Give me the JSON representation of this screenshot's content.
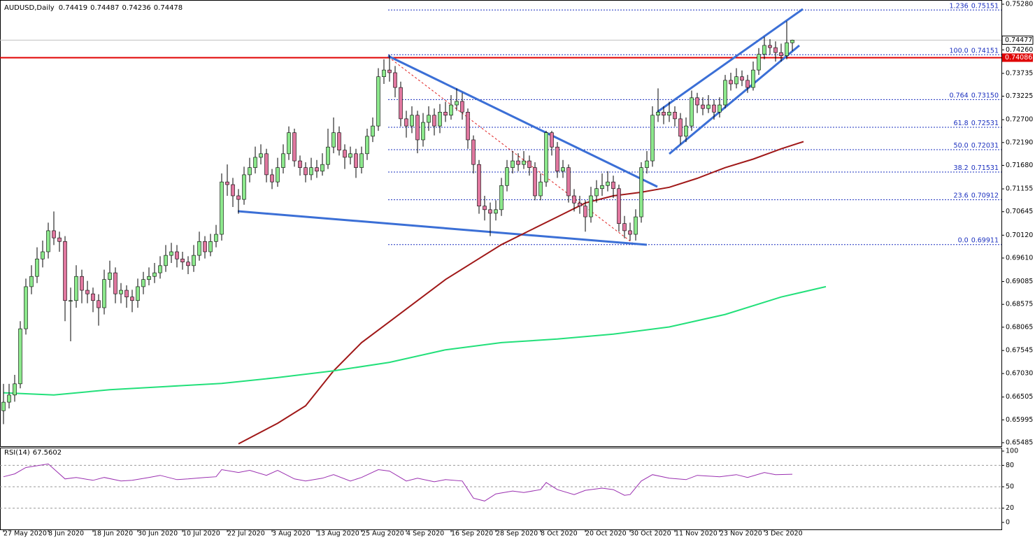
{
  "chart_data": [
    {
      "type": "candlestick",
      "symbol": "AUDUSD,Daily",
      "up_color": "#8ce88c",
      "down_color": "#e0779f",
      "xlim": [
        -0.625,
        178.375
      ],
      "ylim": [
        0.65407,
        0.75374
      ],
      "xticks": [
        {
          "value": 0,
          "label": "27 May 2020"
        },
        {
          "value": 8,
          "label": "8 Jun 2020"
        },
        {
          "value": 16,
          "label": "18 Jun 2020"
        },
        {
          "value": 24,
          "label": "30 Jun 2020"
        },
        {
          "value": 32,
          "label": "10 Jul 2020"
        },
        {
          "value": 40,
          "label": "22 Jul 2020"
        },
        {
          "value": 48,
          "label": "3 Aug 2020"
        },
        {
          "value": 56,
          "label": "13 Aug 2020"
        },
        {
          "value": 64,
          "label": "25 Aug 2020"
        },
        {
          "value": 72,
          "label": "4 Sep 2020"
        },
        {
          "value": 80,
          "label": "16 Sep 2020"
        },
        {
          "value": 88,
          "label": "28 Sep 2020"
        },
        {
          "value": 96,
          "label": "8 Oct 2020"
        },
        {
          "value": 104,
          "label": "20 Oct 2020"
        },
        {
          "value": 112,
          "label": "30 Oct 2020"
        },
        {
          "value": 120,
          "label": "11 Nov 2020"
        },
        {
          "value": 128,
          "label": "23 Nov 2020"
        },
        {
          "value": 136,
          "label": "3 Dec 2020"
        }
      ],
      "yticks": [
        {
          "value": 0.7528,
          "label": "0.75280"
        },
        {
          "value": 0.7426,
          "label": "0.74260"
        },
        0.73735,
        0.73225,
        {
          "value": 0.727,
          "label": "0.72700"
        },
        {
          "value": 0.7219,
          "label": "0.72190"
        },
        {
          "value": 0.7168,
          "label": "0.71680"
        },
        0.71155,
        0.70645,
        {
          "value": 0.7012,
          "label": "0.70120"
        },
        {
          "value": 0.6961,
          "label": "0.69610"
        },
        0.69085,
        0.68575,
        0.68065,
        0.67545,
        {
          "value": 0.6703,
          "label": "0.67030"
        },
        0.66505,
        0.65995,
        0.65485
      ],
      "candles": [
        [
          0.662,
          0.668,
          0.659,
          0.6639
        ],
        [
          0.6639,
          0.668,
          0.6625,
          0.6655
        ],
        [
          0.6655,
          0.67,
          0.664,
          0.668
        ],
        [
          0.668,
          0.682,
          0.667,
          0.6803
        ],
        [
          0.6803,
          0.6915,
          0.679,
          0.6897
        ],
        [
          0.6897,
          0.6945,
          0.688,
          0.692
        ],
        [
          0.692,
          0.6985,
          0.6905,
          0.6959
        ],
        [
          0.6959,
          0.7,
          0.694,
          0.6975
        ],
        [
          0.6975,
          0.704,
          0.696,
          0.7022
        ],
        [
          0.7022,
          0.7065,
          0.699,
          0.7006
        ],
        [
          0.7006,
          0.702,
          0.6975,
          0.6998
        ],
        [
          0.6998,
          0.701,
          0.682,
          0.6866
        ],
        [
          0.6866,
          0.6895,
          0.6775,
          0.6866
        ],
        [
          0.6866,
          0.6945,
          0.685,
          0.692
        ],
        [
          0.692,
          0.6935,
          0.686,
          0.6889
        ],
        [
          0.6889,
          0.691,
          0.686,
          0.6881
        ],
        [
          0.6881,
          0.6895,
          0.684,
          0.6866
        ],
        [
          0.6866,
          0.688,
          0.681,
          0.685
        ],
        [
          0.685,
          0.6935,
          0.6835,
          0.6913
        ],
        [
          0.6913,
          0.6955,
          0.6895,
          0.6928
        ],
        [
          0.6928,
          0.694,
          0.686,
          0.6881
        ],
        [
          0.6881,
          0.6905,
          0.686,
          0.6889
        ],
        [
          0.6889,
          0.69,
          0.685,
          0.6874
        ],
        [
          0.6874,
          0.689,
          0.684,
          0.6866
        ],
        [
          0.6866,
          0.6915,
          0.685,
          0.6897
        ],
        [
          0.6897,
          0.693,
          0.688,
          0.6913
        ],
        [
          0.6913,
          0.694,
          0.69,
          0.692
        ],
        [
          0.692,
          0.695,
          0.6905,
          0.6928
        ],
        [
          0.6928,
          0.6965,
          0.6915,
          0.6944
        ],
        [
          0.6944,
          0.699,
          0.693,
          0.6967
        ],
        [
          0.6967,
          0.6995,
          0.695,
          0.6975
        ],
        [
          0.6975,
          0.699,
          0.694,
          0.6959
        ],
        [
          0.6959,
          0.6975,
          0.6935,
          0.6952
        ],
        [
          0.6952,
          0.6965,
          0.6925,
          0.6944
        ],
        [
          0.6944,
          0.699,
          0.693,
          0.6967
        ],
        [
          0.6967,
          0.702,
          0.6955,
          0.6998
        ],
        [
          0.6998,
          0.701,
          0.696,
          0.6975
        ],
        [
          0.6975,
          0.7015,
          0.6965,
          0.6998
        ],
        [
          0.6998,
          0.7035,
          0.6985,
          0.7014
        ],
        [
          0.7014,
          0.715,
          0.7,
          0.7131
        ],
        [
          0.7131,
          0.717,
          0.71,
          0.7125
        ],
        [
          0.7125,
          0.714,
          0.7075,
          0.71
        ],
        [
          0.71,
          0.7115,
          0.706,
          0.7092
        ],
        [
          0.7092,
          0.7165,
          0.708,
          0.7147
        ],
        [
          0.7147,
          0.7185,
          0.713,
          0.7163
        ],
        [
          0.7163,
          0.721,
          0.715,
          0.7186
        ],
        [
          0.7186,
          0.7215,
          0.717,
          0.7194
        ],
        [
          0.7194,
          0.7205,
          0.713,
          0.7147
        ],
        [
          0.7147,
          0.716,
          0.7115,
          0.7131
        ],
        [
          0.7131,
          0.7185,
          0.712,
          0.7163
        ],
        [
          0.7163,
          0.7215,
          0.715,
          0.7194
        ],
        [
          0.7194,
          0.7255,
          0.718,
          0.7241
        ],
        [
          0.7241,
          0.725,
          0.7165,
          0.7178
        ],
        [
          0.7178,
          0.719,
          0.7145,
          0.7163
        ],
        [
          0.7163,
          0.7175,
          0.713,
          0.7147
        ],
        [
          0.7147,
          0.7185,
          0.7135,
          0.7163
        ],
        [
          0.7163,
          0.718,
          0.714,
          0.7155
        ],
        [
          0.7155,
          0.7195,
          0.7145,
          0.717
        ],
        [
          0.717,
          0.725,
          0.716,
          0.7209
        ],
        [
          0.7209,
          0.7275,
          0.7195,
          0.7241
        ],
        [
          0.7241,
          0.7255,
          0.719,
          0.7202
        ],
        [
          0.7202,
          0.7215,
          0.716,
          0.7186
        ],
        [
          0.7186,
          0.721,
          0.717,
          0.7194
        ],
        [
          0.7194,
          0.7205,
          0.714,
          0.7163
        ],
        [
          0.7163,
          0.721,
          0.715,
          0.7194
        ],
        [
          0.7194,
          0.725,
          0.718,
          0.7233
        ],
        [
          0.7233,
          0.7275,
          0.722,
          0.7256
        ],
        [
          0.7256,
          0.7385,
          0.7245,
          0.7366
        ],
        [
          0.7366,
          0.7405,
          0.735,
          0.7381
        ],
        [
          0.7381,
          0.7415,
          0.7355,
          0.7375
        ],
        [
          0.7375,
          0.739,
          0.732,
          0.7342
        ],
        [
          0.7342,
          0.7355,
          0.7255,
          0.7272
        ],
        [
          0.7272,
          0.729,
          0.723,
          0.7256
        ],
        [
          0.7256,
          0.73,
          0.724,
          0.728
        ],
        [
          0.728,
          0.729,
          0.7195,
          0.7225
        ],
        [
          0.7225,
          0.7285,
          0.721,
          0.7264
        ],
        [
          0.7264,
          0.73,
          0.7245,
          0.728
        ],
        [
          0.728,
          0.7295,
          0.7235,
          0.7256
        ],
        [
          0.7256,
          0.7305,
          0.724,
          0.7287
        ],
        [
          0.7287,
          0.731,
          0.7265,
          0.728
        ],
        [
          0.728,
          0.7325,
          0.727,
          0.7303
        ],
        [
          0.7303,
          0.734,
          0.729,
          0.7311
        ],
        [
          0.7311,
          0.733,
          0.727,
          0.7287
        ],
        [
          0.7287,
          0.7295,
          0.7205,
          0.7225
        ],
        [
          0.7225,
          0.7235,
          0.715,
          0.717
        ],
        [
          0.717,
          0.718,
          0.706,
          0.7077
        ],
        [
          0.7077,
          0.71,
          0.7045,
          0.7069
        ],
        [
          0.7069,
          0.7085,
          0.701,
          0.7061
        ],
        [
          0.7061,
          0.709,
          0.7045,
          0.7069
        ],
        [
          0.7069,
          0.714,
          0.7055,
          0.7123
        ],
        [
          0.7123,
          0.718,
          0.711,
          0.7163
        ],
        [
          0.7163,
          0.72,
          0.715,
          0.7178
        ],
        [
          0.7178,
          0.7195,
          0.7155,
          0.717
        ],
        [
          0.717,
          0.72,
          0.716,
          0.7178
        ],
        [
          0.7178,
          0.719,
          0.7145,
          0.7163
        ],
        [
          0.7163,
          0.7175,
          0.709,
          0.71
        ],
        [
          0.71,
          0.715,
          0.709,
          0.7131
        ],
        [
          0.7131,
          0.7245,
          0.712,
          0.7241
        ],
        [
          0.7241,
          0.7245,
          0.719,
          0.7209
        ],
        [
          0.7209,
          0.722,
          0.714,
          0.7155
        ],
        [
          0.7155,
          0.718,
          0.714,
          0.7163
        ],
        [
          0.7163,
          0.717,
          0.7085,
          0.71
        ],
        [
          0.71,
          0.7115,
          0.7065,
          0.7084
        ],
        [
          0.7084,
          0.71,
          0.706,
          0.7077
        ],
        [
          0.7077,
          0.709,
          0.702,
          0.7053
        ],
        [
          0.7053,
          0.712,
          0.704,
          0.71
        ],
        [
          0.71,
          0.7135,
          0.7085,
          0.7116
        ],
        [
          0.7116,
          0.715,
          0.71,
          0.7123
        ],
        [
          0.7123,
          0.7155,
          0.711,
          0.7131
        ],
        [
          0.7131,
          0.7145,
          0.7095,
          0.7116
        ],
        [
          0.7116,
          0.7125,
          0.702,
          0.7038
        ],
        [
          0.7038,
          0.7055,
          0.7005,
          0.7022
        ],
        [
          0.7022,
          0.704,
          0.7,
          0.7014
        ],
        [
          0.7014,
          0.707,
          0.7,
          0.7053
        ],
        [
          0.7053,
          0.7175,
          0.704,
          0.7163
        ],
        [
          0.7163,
          0.72,
          0.715,
          0.7178
        ],
        [
          0.7178,
          0.73,
          0.7165,
          0.728
        ],
        [
          0.728,
          0.734,
          0.7265,
          0.7287
        ],
        [
          0.7287,
          0.73,
          0.726,
          0.728
        ],
        [
          0.728,
          0.731,
          0.7265,
          0.7287
        ],
        [
          0.7287,
          0.73,
          0.7255,
          0.7272
        ],
        [
          0.7272,
          0.7285,
          0.7215,
          0.7233
        ],
        [
          0.7233,
          0.7275,
          0.722,
          0.7256
        ],
        [
          0.7256,
          0.7335,
          0.7245,
          0.7319
        ],
        [
          0.7319,
          0.733,
          0.7285,
          0.7303
        ],
        [
          0.7303,
          0.732,
          0.728,
          0.7295
        ],
        [
          0.7295,
          0.7325,
          0.7285,
          0.7303
        ],
        [
          0.7303,
          0.7315,
          0.727,
          0.7287
        ],
        [
          0.7287,
          0.732,
          0.7275,
          0.7303
        ],
        [
          0.7303,
          0.737,
          0.7295,
          0.7358
        ],
        [
          0.7358,
          0.7375,
          0.7335,
          0.735
        ],
        [
          0.735,
          0.7385,
          0.734,
          0.7366
        ],
        [
          0.7366,
          0.738,
          0.7345,
          0.7358
        ],
        [
          0.7358,
          0.737,
          0.733,
          0.7342
        ],
        [
          0.7342,
          0.74,
          0.7335,
          0.7381
        ],
        [
          0.7381,
          0.743,
          0.737,
          0.7416
        ],
        [
          0.7416,
          0.7455,
          0.7405,
          0.7436
        ],
        [
          0.7436,
          0.745,
          0.7415,
          0.7431
        ],
        [
          0.7431,
          0.7445,
          0.74,
          0.742
        ],
        [
          0.742,
          0.744,
          0.74,
          0.7413
        ],
        [
          0.7413,
          0.749,
          0.7405,
          0.7442
        ],
        [
          0.74419,
          0.74487,
          0.74236,
          0.74478
        ]
      ],
      "ma": [
        {
          "color": "#a01818",
          "x": [
            42,
            49,
            54,
            59,
            64,
            69,
            74,
            79,
            84,
            89,
            94,
            99,
            104,
            109,
            114,
            119,
            124,
            129,
            134,
            139,
            143
          ],
          "values": [
            0.6546,
            0.6592,
            0.6631,
            0.6709,
            0.6772,
            0.6819,
            0.6866,
            0.6913,
            0.6952,
            0.6991,
            0.7022,
            0.7053,
            0.7084,
            0.71,
            0.7108,
            0.7119,
            0.7139,
            0.7163,
            0.7182,
            0.7205,
            0.7221
          ]
        },
        {
          "color": "#22e07a",
          "x": [
            0,
            9,
            19,
            29,
            39,
            49,
            59,
            69,
            79,
            89,
            99,
            109,
            119,
            129,
            139,
            147
          ],
          "values": [
            0.666,
            0.6655,
            0.6667,
            0.6674,
            0.6681,
            0.6694,
            0.6709,
            0.6728,
            0.6756,
            0.6772,
            0.678,
            0.6791,
            0.6807,
            0.6835,
            0.6874,
            0.6897
          ]
        }
      ],
      "fib_color": "#1a2fbf",
      "fib_levels": [
        {
          "label": "1.236",
          "value": 0.75151
        },
        {
          "label": "100.0",
          "value": 0.74151
        },
        {
          "label": "0.764",
          "value": 0.7315,
          "value_label": "0.73150"
        },
        {
          "label": "61.8",
          "value": 0.72531
        },
        {
          "label": "50.0",
          "value": 0.72031
        },
        {
          "label": "38.2",
          "value": 0.71531
        },
        {
          "label": "23.6",
          "value": 0.70912
        },
        {
          "label": "0.0",
          "value": 0.69911
        }
      ],
      "bid_line": 0.74477,
      "resistance_line": 0.74086,
      "resistance_color": "#e00000"
    },
    {
      "type": "line",
      "title": "RSI(14)",
      "xlim": [
        -0.625,
        178.375
      ],
      "ylim": [
        -9.8,
        104.9
      ],
      "yticks": [
        100,
        80,
        50,
        20,
        0
      ],
      "levels": [
        80,
        50,
        20
      ],
      "series": {
        "color": "#9a2fb0",
        "x": [
          0,
          2,
          4,
          8,
          9,
          11,
          13,
          16,
          18,
          21,
          23,
          26,
          28,
          31,
          33,
          36,
          38,
          39,
          42,
          44,
          47,
          49,
          52,
          54,
          57,
          59,
          62,
          64,
          67,
          69,
          72,
          74,
          77,
          79,
          82,
          84,
          86,
          88,
          91,
          93,
          96,
          97,
          99,
          102,
          104,
          107,
          109,
          111,
          112,
          114,
          116,
          119,
          122,
          124,
          128,
          131,
          133,
          136,
          138,
          141
        ],
        "values": [
          64,
          68,
          77,
          82,
          75,
          61,
          63,
          59,
          63,
          58,
          59,
          63,
          66,
          60,
          61,
          63,
          64,
          74,
          70,
          73,
          66,
          73,
          61,
          58,
          62,
          67,
          58,
          63,
          74,
          72,
          58,
          62,
          57,
          60,
          58,
          34,
          30,
          40,
          44,
          42,
          46,
          56,
          46,
          39,
          45,
          48,
          46,
          38,
          39,
          58,
          67,
          62,
          60,
          66,
          64,
          67,
          63,
          70,
          67,
          67.5602
        ]
      }
    }
  ]
}
